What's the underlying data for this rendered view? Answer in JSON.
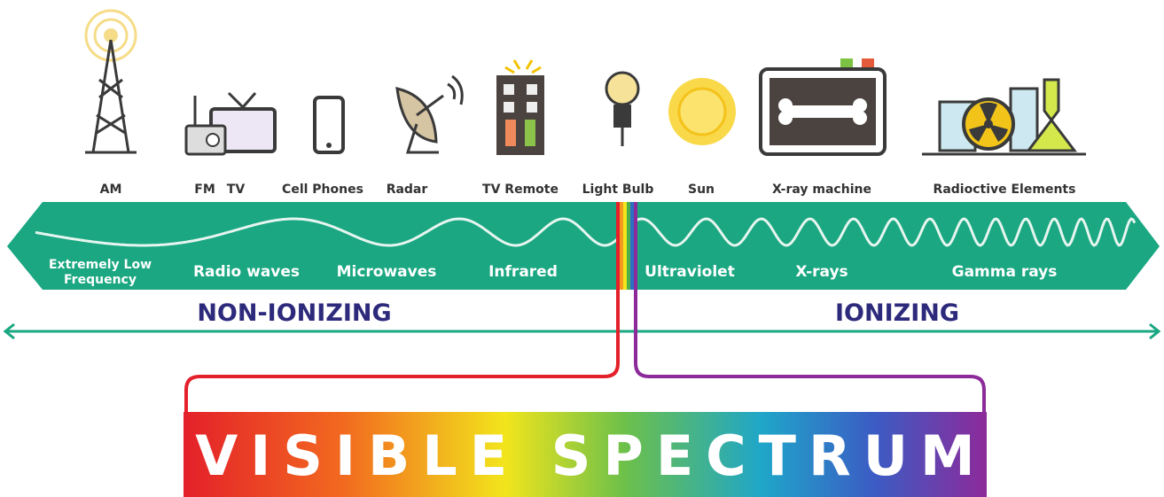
{
  "sources": [
    {
      "label": "AM"
    },
    {
      "label": "FM"
    },
    {
      "label": "TV"
    },
    {
      "label": "Cell Phones"
    },
    {
      "label": "Radar"
    },
    {
      "label": "TV Remote"
    },
    {
      "label": "Light Bulb"
    },
    {
      "label": "Sun"
    },
    {
      "label": "X-ray machine"
    },
    {
      "label": "Radioctive Elements"
    }
  ],
  "bands": [
    {
      "lines": [
        "Extremely Low",
        "Frequency"
      ]
    },
    {
      "lines": [
        "Radio waves"
      ]
    },
    {
      "lines": [
        "Microwaves"
      ]
    },
    {
      "lines": [
        "Infrared"
      ]
    },
    {
      "lines": [
        "Ultraviolet"
      ]
    },
    {
      "lines": [
        "X-rays"
      ]
    },
    {
      "lines": [
        "Gamma rays"
      ]
    }
  ],
  "groups": {
    "non_ionizing": "NON-IONIZING",
    "ionizing": "IONIZING"
  },
  "visible": "VISIBLE SPECTRUM"
}
